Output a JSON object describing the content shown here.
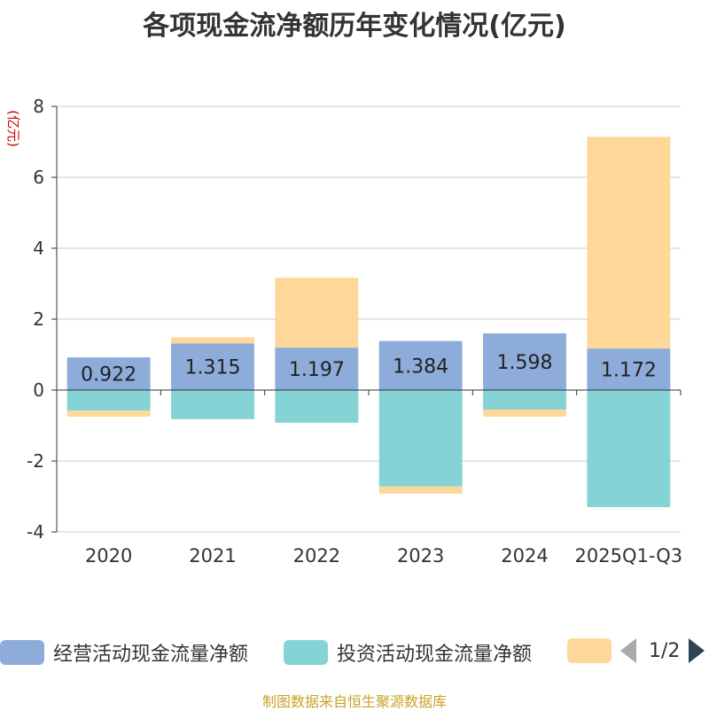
{
  "chart_data": {
    "type": "bar",
    "stacked": true,
    "title": "各项现金流净额历年变化情况(亿元)",
    "ylabel": "(亿元)",
    "xlabel": "",
    "ylim": [
      -4,
      8
    ],
    "yticks": [
      -4,
      -2,
      0,
      2,
      4,
      6,
      8
    ],
    "grid": true,
    "categories": [
      "2020",
      "2021",
      "2022",
      "2023",
      "2024",
      "2025Q1-Q3"
    ],
    "series": [
      {
        "name": "经营活动现金流量净额",
        "color": "#8eacd9",
        "values": [
          0.922,
          1.315,
          1.197,
          1.384,
          1.598,
          1.172
        ],
        "labels": [
          "0.922",
          "1.315",
          "1.197",
          "1.384",
          "1.598",
          "1.172"
        ]
      },
      {
        "name": "投资活动现金流量净额",
        "color": "#86d3d6",
        "values": [
          -0.58,
          -0.82,
          -0.92,
          -2.72,
          -0.55,
          -3.3
        ]
      },
      {
        "name": "",
        "color": "#fed799",
        "values": [
          -0.17,
          0.17,
          1.97,
          -0.2,
          -0.2,
          5.97
        ]
      }
    ],
    "legend_position": "bottom",
    "pager": "1/2",
    "source": "制图数据来自恒生聚源数据库"
  }
}
